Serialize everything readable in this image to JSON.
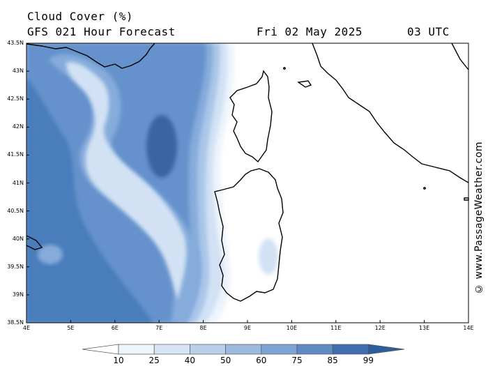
{
  "title": "Cloud Cover (%)",
  "subtitle": "GFS 021 Hour Forecast",
  "date": "Fri 02 May 2025",
  "time": "03 UTC",
  "credit": "© www.PassageWeather.com",
  "lat_labels": [
    "43.5N",
    "43N",
    "42.5N",
    "42N",
    "41.5N",
    "41N",
    "40.5N",
    "40N",
    "39.5N",
    "39N",
    "38.5N"
  ],
  "lon_labels": [
    "4E",
    "5E",
    "6E",
    "7E",
    "8E",
    "9E",
    "10E",
    "11E",
    "12E",
    "13E",
    "14E"
  ],
  "colorbar": {
    "labels": [
      "10",
      "25",
      "40",
      "50",
      "60",
      "75",
      "85",
      "99"
    ],
    "colors": [
      "#ffffff",
      "#eef4fb",
      "#d7e4f4",
      "#b9cfea",
      "#9bbade",
      "#7ea4d3",
      "#5f8bc4",
      "#3f6fae",
      "#2e5d9c"
    ]
  },
  "legend_colors": {
    "land": "#ffffff",
    "c1": "#3a65a0",
    "c2": "#4a7dbb",
    "c3": "#6592cc",
    "c4": "#86acdb",
    "c5": "#aac6e8",
    "c6": "#d2e2f4",
    "c7": "#eef4fb"
  }
}
